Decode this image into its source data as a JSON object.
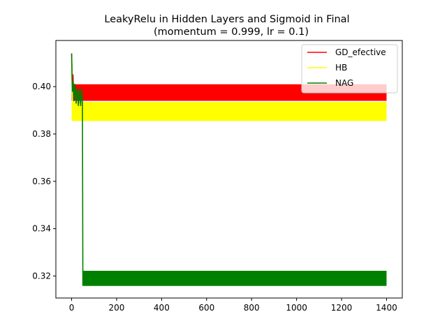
{
  "chart_data": {
    "type": "line",
    "title": "LeakyRelu in Hidden Layers and Sigmoid in Final",
    "subtitle": "(momentum = 0.999, lr = 0.1)",
    "xlabel": "",
    "ylabel": "",
    "xlim": [
      -70,
      1470
    ],
    "ylim": [
      0.3107,
      0.4195
    ],
    "xticks": [
      0,
      200,
      400,
      600,
      800,
      1000,
      1200,
      1400
    ],
    "xtick_labels": [
      "0",
      "200",
      "400",
      "600",
      "800",
      "1000",
      "1200",
      "1400"
    ],
    "yticks": [
      0.32,
      0.34,
      0.36,
      0.38,
      0.4
    ],
    "ytick_labels": [
      "0.32",
      "0.34",
      "0.36",
      "0.38",
      "0.40"
    ],
    "grid": false,
    "legend_position": "top-right",
    "series": [
      {
        "name": "GD_efective",
        "color": "#ff0000",
        "points": [
          [
            0,
            0.414
          ],
          [
            3,
            0.399
          ],
          [
            6,
            0.405
          ],
          [
            10,
            0.394
          ],
          [
            20,
            0.4005
          ]
        ],
        "band": {
          "x_start": 0,
          "x_end": 1400,
          "y_low": 0.394,
          "y_high": 0.401
        }
      },
      {
        "name": "HB",
        "color": "#ffff00",
        "points": [
          [
            0,
            0.411
          ],
          [
            4,
            0.393
          ],
          [
            10,
            0.386
          ],
          [
            20,
            0.3935
          ]
        ],
        "band": {
          "x_start": 0,
          "x_end": 1400,
          "y_low": 0.3855,
          "y_high": 0.3935
        }
      },
      {
        "name": "NAG",
        "color": "#008000",
        "points": [
          [
            0,
            0.414
          ],
          [
            3,
            0.398
          ],
          [
            7,
            0.402
          ],
          [
            10,
            0.394
          ],
          [
            15,
            0.401
          ],
          [
            20,
            0.393
          ],
          [
            25,
            0.399
          ],
          [
            30,
            0.392
          ],
          [
            35,
            0.399
          ],
          [
            40,
            0.392
          ],
          [
            45,
            0.399
          ],
          [
            48,
            0.394
          ],
          [
            50,
            0.316
          ],
          [
            56,
            0.322
          ]
        ],
        "band": {
          "x_start": 52,
          "x_end": 1400,
          "y_low": 0.3158,
          "y_high": 0.3222
        }
      }
    ]
  }
}
